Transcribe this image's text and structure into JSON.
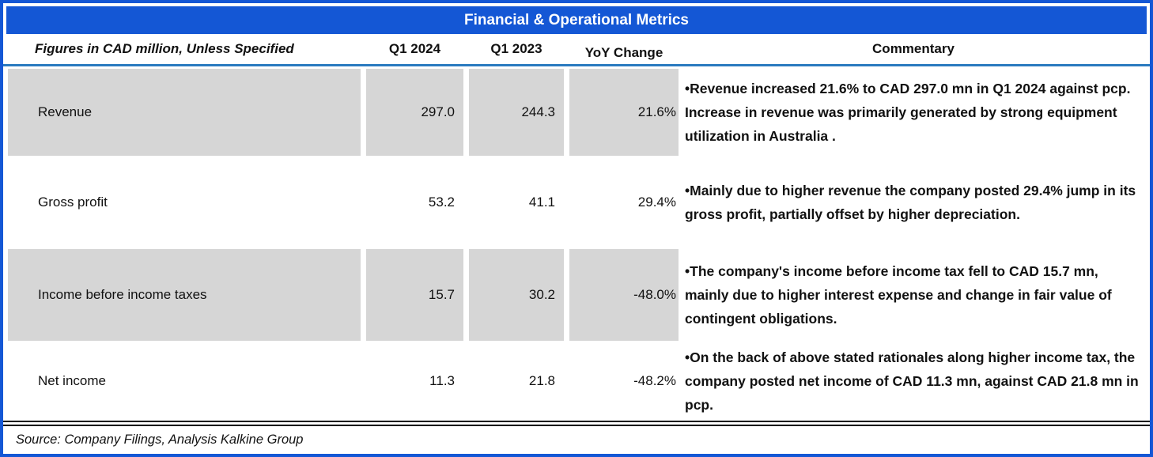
{
  "title": "Financial & Operational Metrics",
  "columns": {
    "label": "Figures in CAD million, Unless Specified",
    "q1_2024": "Q1 2024",
    "q1_2023": "Q1 2023",
    "yoy": "YoY Change",
    "commentary": "Commentary"
  },
  "rows": [
    {
      "label": "Revenue",
      "q1_2024": "297.0",
      "q1_2023": "244.3",
      "yoy": "21.6%",
      "commentary": "•Revenue increased 21.6% to CAD 297.0 mn in Q1 2024 against pcp. Increase in revenue was primarily generated by strong equipment utilization in Australia ."
    },
    {
      "label": "Gross profit",
      "q1_2024": "53.2",
      "q1_2023": "41.1",
      "yoy": "29.4%",
      "commentary": "•Mainly due to higher revenue the company posted 29.4% jump in its gross profit, partially offset by higher depreciation."
    },
    {
      "label": "Income before income taxes",
      "q1_2024": "15.7",
      "q1_2023": "30.2",
      "yoy": "-48.0%",
      "commentary": "•The company's income before income tax fell to CAD 15.7 mn, mainly due to higher interest expense and change in fair value of contingent obligations."
    },
    {
      "label": "Net income",
      "q1_2024": "11.3",
      "q1_2023": "21.8",
      "yoy": "-48.2%",
      "commentary": "•On the back of above stated rationales along higher income tax, the company posted net income of CAD 11.3 mn, against CAD 21.8 mn in pcp."
    }
  ],
  "footer": {
    "source": "Source: Company Filings, Analysis Kalkine Group"
  },
  "colors": {
    "accent_blue": "#1457D5",
    "header_underline_blue": "#2A7ABF",
    "cell_gray": "#D6D6D6",
    "text_black": "#111111",
    "title_text": "#FFFFFF"
  }
}
